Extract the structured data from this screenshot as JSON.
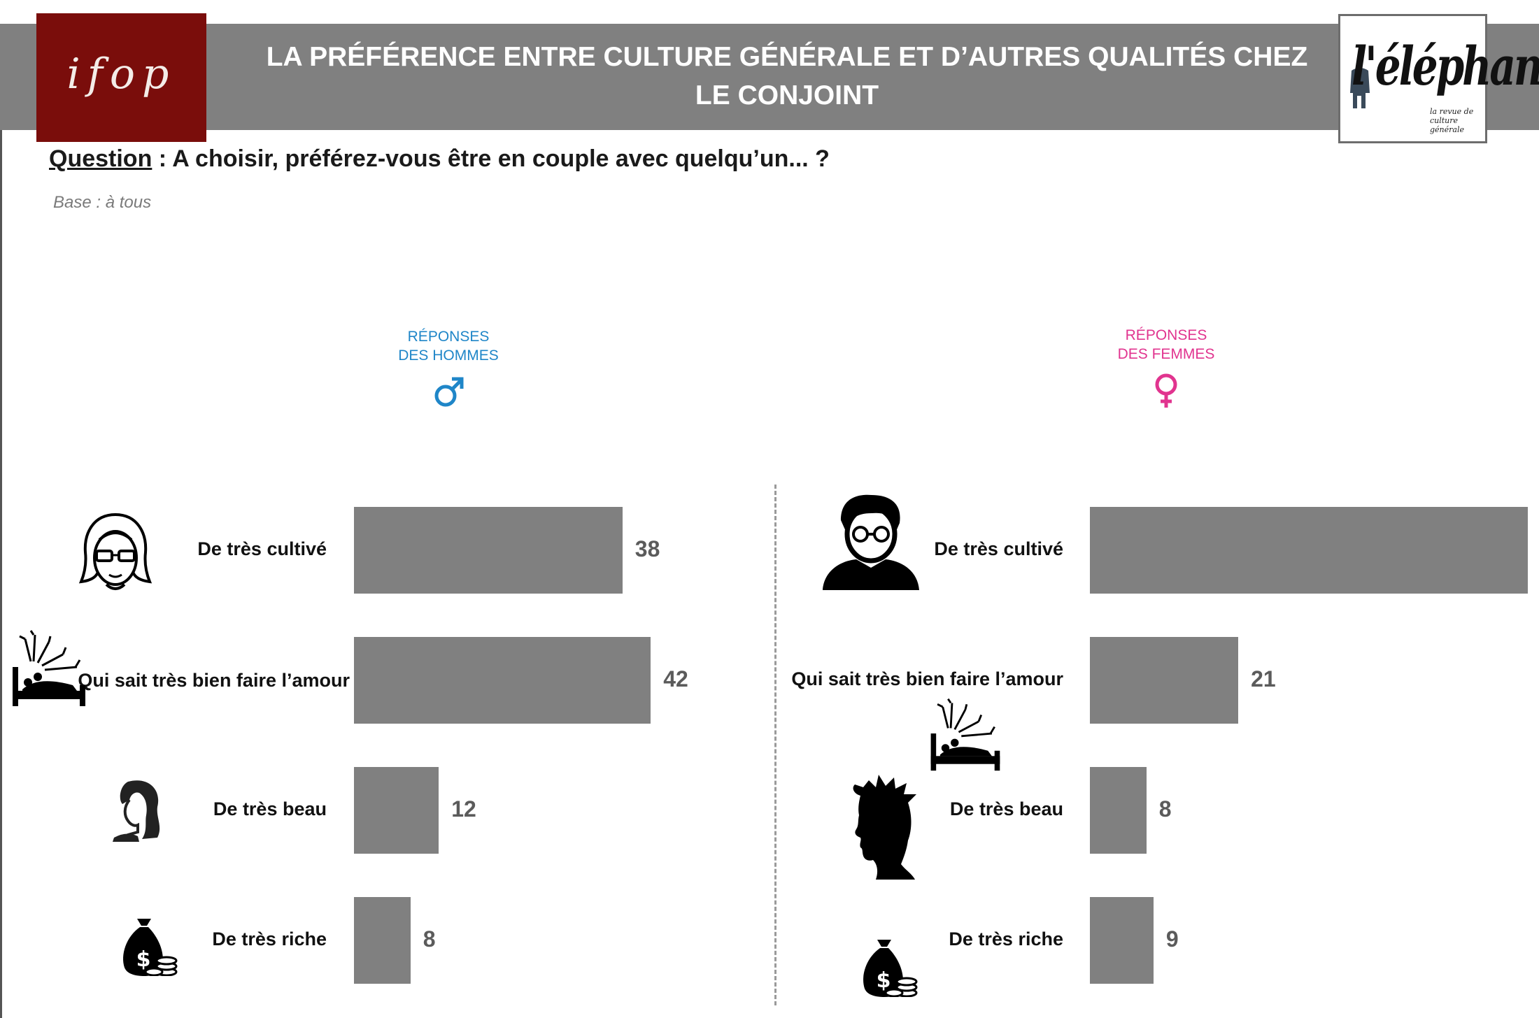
{
  "header": {
    "title": "LA PRÉFÉRENCE ENTRE CULTURE GÉNÉRALE ET D’AUTRES QUALITÉS CHEZ LE CONJOINT",
    "left_logo": "ifop",
    "right_logo_name": "l'éléphant",
    "right_logo_tagline": "la revue de culture générale"
  },
  "question": {
    "label": "Question",
    "text": " : A choisir, préférez-vous être en couple avec quelqu’un... ?"
  },
  "base": "Base : à tous",
  "colors": {
    "bar": "#808080",
    "men": "#1f86c8",
    "women": "#e1348f",
    "header": "#808080",
    "ifop": "#7a0d0b"
  },
  "panels": {
    "men": {
      "line1": "RÉPONSES",
      "line2": "DES HOMMES",
      "symbol": "male-symbol-icon"
    },
    "women": {
      "line1": "RÉPONSES",
      "line2": "DES FEMMES",
      "symbol": "female-symbol-icon"
    }
  },
  "chart_data": [
    {
      "type": "bar",
      "orientation": "horizontal",
      "title": "RÉPONSES DES HOMMES",
      "categories": [
        "De très cultivé",
        "Qui sait très bien faire l’amour",
        "De très beau",
        "De très riche"
      ],
      "values": [
        38,
        42,
        12,
        8
      ],
      "icons": [
        "woman-glasses-icon",
        "bed-fireworks-icon",
        "woman-hair-icon",
        "money-bag-icon"
      ]
    },
    {
      "type": "bar",
      "orientation": "horizontal",
      "title": "RÉPONSES DES FEMMES",
      "categories": [
        "De très cultivé",
        "Qui sait très bien faire l’amour",
        "De très beau",
        "De très riche"
      ],
      "values": [
        62,
        21,
        8,
        9
      ],
      "icons": [
        "man-glasses-icon",
        "bed-fireworks-icon",
        "man-profile-icon",
        "money-bag-icon"
      ]
    }
  ]
}
